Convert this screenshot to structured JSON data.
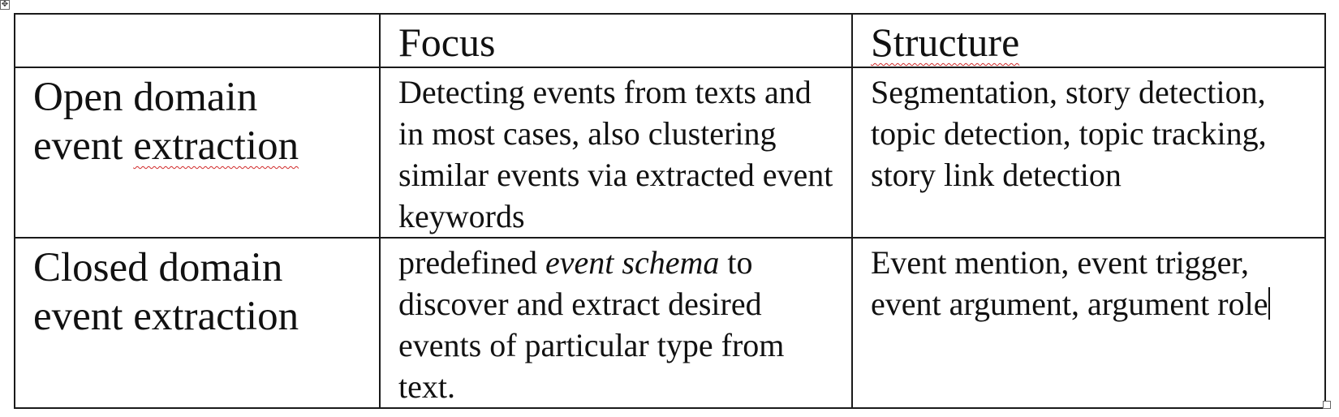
{
  "table": {
    "header": {
      "col0": "",
      "col1": "Focus",
      "col2": "Structure"
    },
    "rows": [
      {
        "label_line1": "Open domain",
        "label_line2_a": "event ",
        "label_line2_b": "extraction",
        "focus": "Detecting events from texts and in most cases, also clustering similar events via extracted event keywords",
        "structure": "Segmentation, story detection, topic detection, topic tracking, story link detection"
      },
      {
        "label_line1": "Closed domain",
        "label_line2": "event extraction",
        "focus_a": "predefined ",
        "focus_italic": "event schema",
        "focus_b": " to discover and extract desired events of particular type from text.",
        "structure": "Event mention, event trigger, event argument, argument role"
      }
    ]
  },
  "icons": {
    "table_move_handle": "move-icon",
    "table_resize_handle": "resize-handle-icon"
  }
}
